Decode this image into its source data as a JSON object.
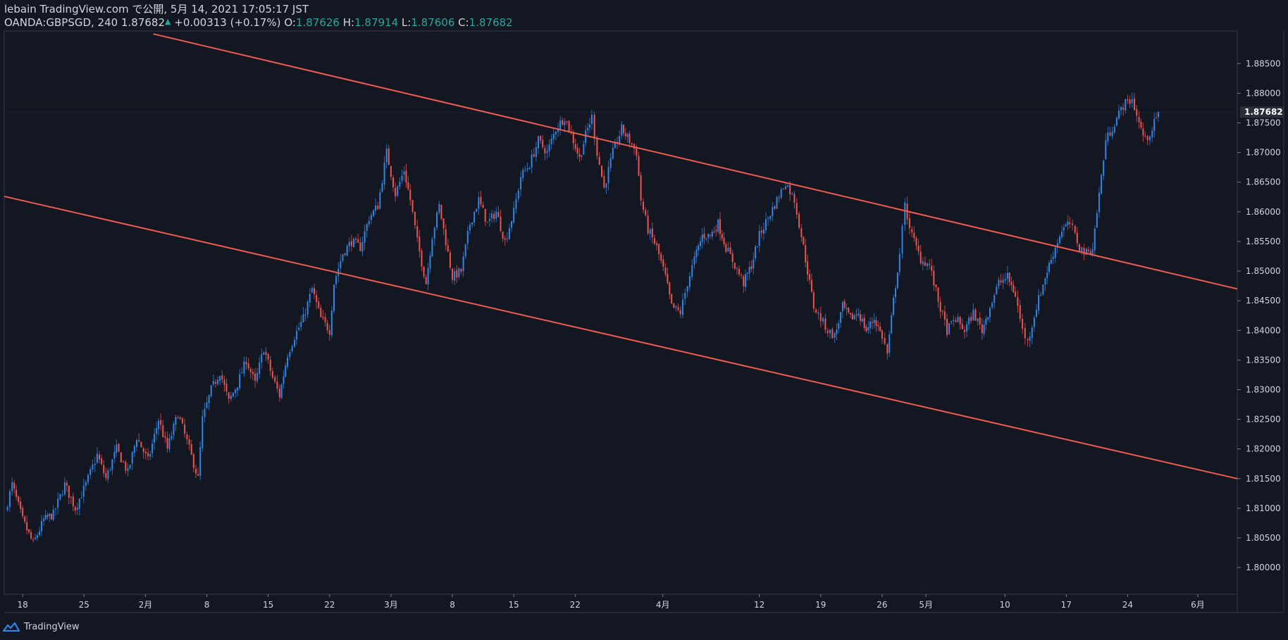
{
  "header": {
    "publish_line": "lebain TradingView.com で公開, 5月 14, 2021 17:05:17 JST",
    "symbol": "OANDA:GBPSGD, 240",
    "last_price": "1.87682",
    "up_marker": "▲",
    "change": "+0.00313 (+0.17%)",
    "o_label": "O:",
    "o_value": "1.87626",
    "h_label": "H:",
    "h_value": "1.87914",
    "l_label": "L:",
    "l_value": "1.87606",
    "c_label": "C:",
    "c_value": "1.87682"
  },
  "footer": {
    "brand": "TradingView"
  },
  "colors": {
    "background": "#131722",
    "up": "#2f86e6",
    "down": "#ef5350",
    "trendline": "#f05a50",
    "text": "#d1d4dc",
    "ohlc_value": "#26a69a",
    "price_tag_bg": "#2a2e39"
  },
  "chart_data": {
    "type": "candlestick",
    "timeframe": "240",
    "ylim": [
      1.7955,
      1.8905
    ],
    "yticks": [
      "1.88500",
      "1.88000",
      "1.87500",
      "1.87000",
      "1.86500",
      "1.86000",
      "1.85500",
      "1.85000",
      "1.84500",
      "1.84000",
      "1.83500",
      "1.83000",
      "1.82500",
      "1.82000",
      "1.81500",
      "1.81000",
      "1.80500",
      "1.80000"
    ],
    "ytick_values": [
      1.885,
      1.88,
      1.875,
      1.87,
      1.865,
      1.86,
      1.855,
      1.85,
      1.845,
      1.84,
      1.835,
      1.83,
      1.825,
      1.82,
      1.815,
      1.81,
      1.805,
      1.8
    ],
    "x_range_days": [
      -2.1,
      138.5
    ],
    "xticks": [
      {
        "label": "18",
        "day": 0
      },
      {
        "label": "25",
        "day": 7
      },
      {
        "label": "2月",
        "day": 14
      },
      {
        "label": "8",
        "day": 21
      },
      {
        "label": "15",
        "day": 28
      },
      {
        "label": "22",
        "day": 35
      },
      {
        "label": "3月",
        "day": 42
      },
      {
        "label": "8",
        "day": 49
      },
      {
        "label": "15",
        "day": 56
      },
      {
        "label": "22",
        "day": 63
      },
      {
        "label": "4月",
        "day": 73
      },
      {
        "label": "12",
        "day": 84
      },
      {
        "label": "19",
        "day": 91
      },
      {
        "label": "26",
        "day": 98
      },
      {
        "label": "5月",
        "day": 103
      },
      {
        "label": "10",
        "day": 112
      },
      {
        "label": "17",
        "day": 119
      },
      {
        "label": "24",
        "day": 126
      },
      {
        "label": "6月",
        "day": 134
      }
    ],
    "last_price": 1.87682,
    "last_price_label": "1.87682",
    "close_anchors": [
      [
        -2.0,
        1.8095
      ],
      [
        -1.2,
        1.814
      ],
      [
        0.0,
        1.808
      ],
      [
        1.2,
        1.804
      ],
      [
        2.4,
        1.808
      ],
      [
        3.5,
        1.809
      ],
      [
        4.8,
        1.814
      ],
      [
        6.0,
        1.81
      ],
      [
        7.2,
        1.814
      ],
      [
        8.5,
        1.819
      ],
      [
        9.5,
        1.815
      ],
      [
        10.7,
        1.82
      ],
      [
        12.0,
        1.816
      ],
      [
        13.0,
        1.822
      ],
      [
        14.3,
        1.818
      ],
      [
        15.5,
        1.825
      ],
      [
        16.5,
        1.82
      ],
      [
        17.7,
        1.826
      ],
      [
        19.0,
        1.82
      ],
      [
        20.0,
        1.815
      ],
      [
        20.5,
        1.825
      ],
      [
        21.5,
        1.83
      ],
      [
        22.5,
        1.833
      ],
      [
        23.5,
        1.828
      ],
      [
        24.5,
        1.831
      ],
      [
        25.5,
        1.835
      ],
      [
        26.5,
        1.831
      ],
      [
        27.5,
        1.837
      ],
      [
        28.5,
        1.832
      ],
      [
        29.3,
        1.829
      ],
      [
        30.2,
        1.836
      ],
      [
        31.0,
        1.839
      ],
      [
        32.0,
        1.842
      ],
      [
        33.0,
        1.847
      ],
      [
        34.0,
        1.842
      ],
      [
        35.0,
        1.84
      ],
      [
        35.5,
        1.848
      ],
      [
        36.5,
        1.853
      ],
      [
        37.5,
        1.855
      ],
      [
        38.5,
        1.854
      ],
      [
        39.5,
        1.859
      ],
      [
        40.5,
        1.861
      ],
      [
        41.5,
        1.87
      ],
      [
        42.5,
        1.863
      ],
      [
        43.5,
        1.867
      ],
      [
        44.2,
        1.862
      ],
      [
        45.0,
        1.855
      ],
      [
        46.0,
        1.848
      ],
      [
        46.7,
        1.856
      ],
      [
        47.5,
        1.861
      ],
      [
        48.5,
        1.853
      ],
      [
        49.0,
        1.849
      ],
      [
        50.0,
        1.85
      ],
      [
        51.0,
        1.858
      ],
      [
        52.0,
        1.862
      ],
      [
        53.0,
        1.858
      ],
      [
        54.0,
        1.86
      ],
      [
        55.0,
        1.855
      ],
      [
        56.0,
        1.86
      ],
      [
        56.8,
        1.866
      ],
      [
        57.8,
        1.868
      ],
      [
        58.8,
        1.872
      ],
      [
        59.8,
        1.87
      ],
      [
        60.8,
        1.874
      ],
      [
        61.8,
        1.876
      ],
      [
        62.8,
        1.872
      ],
      [
        63.5,
        1.869
      ],
      [
        64.2,
        1.873
      ],
      [
        64.9,
        1.876
      ],
      [
        65.5,
        1.87
      ],
      [
        66.3,
        1.864
      ],
      [
        67.3,
        1.87
      ],
      [
        68.3,
        1.874
      ],
      [
        69.2,
        1.872
      ],
      [
        70.0,
        1.87
      ],
      [
        70.5,
        1.862
      ],
      [
        71.3,
        1.857
      ],
      [
        72.3,
        1.854
      ],
      [
        73.3,
        1.849
      ],
      [
        74.0,
        1.844
      ],
      [
        75.0,
        1.843
      ],
      [
        75.8,
        1.848
      ],
      [
        76.6,
        1.852
      ],
      [
        77.5,
        1.856
      ],
      [
        78.4,
        1.856
      ],
      [
        79.3,
        1.858
      ],
      [
        80.2,
        1.854
      ],
      [
        81.2,
        1.851
      ],
      [
        82.2,
        1.848
      ],
      [
        83.1,
        1.851
      ],
      [
        84.0,
        1.856
      ],
      [
        85.0,
        1.859
      ],
      [
        86.0,
        1.862
      ],
      [
        87.0,
        1.865
      ],
      [
        88.0,
        1.862
      ],
      [
        88.8,
        1.856
      ],
      [
        89.5,
        1.85
      ],
      [
        90.2,
        1.844
      ],
      [
        91.0,
        1.842
      ],
      [
        91.8,
        1.84
      ],
      [
        92.6,
        1.839
      ],
      [
        93.5,
        1.844
      ],
      [
        94.4,
        1.842
      ],
      [
        95.3,
        1.843
      ],
      [
        96.2,
        1.84
      ],
      [
        97.1,
        1.842
      ],
      [
        98.0,
        1.839
      ],
      [
        98.6,
        1.836
      ],
      [
        99.3,
        1.845
      ],
      [
        100.0,
        1.853
      ],
      [
        100.6,
        1.861
      ],
      [
        101.4,
        1.856
      ],
      [
        102.4,
        1.852
      ],
      [
        103.4,
        1.851
      ],
      [
        104.4,
        1.845
      ],
      [
        105.4,
        1.84
      ],
      [
        106.4,
        1.842
      ],
      [
        107.4,
        1.84
      ],
      [
        108.4,
        1.843
      ],
      [
        109.4,
        1.84
      ],
      [
        110.3,
        1.844
      ],
      [
        111.3,
        1.848
      ],
      [
        112.3,
        1.849
      ],
      [
        113.2,
        1.846
      ],
      [
        114.0,
        1.84
      ],
      [
        114.6,
        1.838
      ],
      [
        115.6,
        1.844
      ],
      [
        116.6,
        1.849
      ],
      [
        117.5,
        1.853
      ],
      [
        118.5,
        1.857
      ],
      [
        119.4,
        1.858
      ],
      [
        120.0,
        1.856
      ],
      [
        120.5,
        1.854
      ],
      [
        121.3,
        1.853
      ],
      [
        122.0,
        1.854
      ],
      [
        122.5,
        1.86
      ],
      [
        123.0,
        1.866
      ],
      [
        123.5,
        1.872
      ],
      [
        124.5,
        1.875
      ],
      [
        125.5,
        1.878
      ],
      [
        126.5,
        1.879
      ],
      [
        127.3,
        1.875
      ],
      [
        128.0,
        1.872
      ],
      [
        128.8,
        1.874
      ],
      [
        129.5,
        1.87682
      ]
    ],
    "trendlines": [
      {
        "name": "channel-upper",
        "from": {
          "day": 14.9,
          "price": 1.89
        },
        "to": {
          "day": 138.5,
          "price": 1.847
        }
      },
      {
        "name": "channel-lower",
        "from": {
          "day": -2.1,
          "price": 1.8626
        },
        "to": {
          "day": 138.5,
          "price": 1.815
        }
      }
    ]
  }
}
